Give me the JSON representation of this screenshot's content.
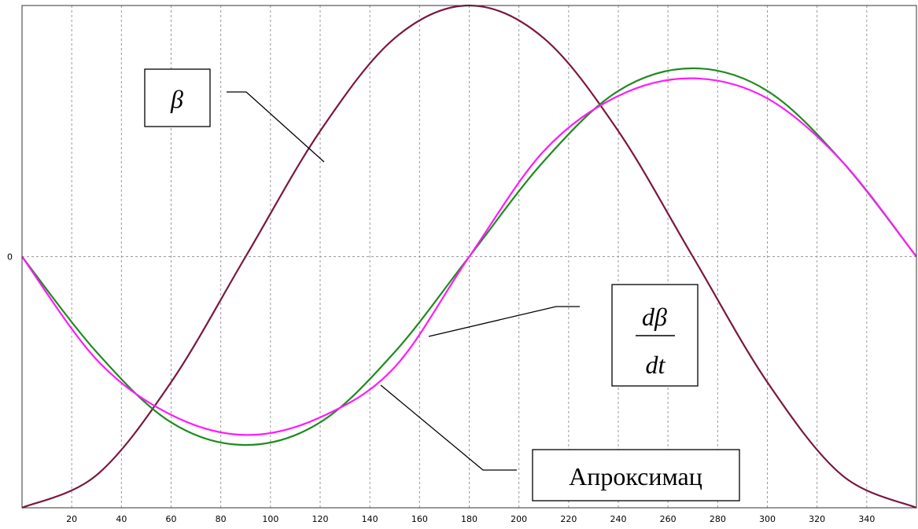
{
  "chart_data": {
    "type": "line",
    "xlim": [
      0,
      360
    ],
    "ylim": [
      -1,
      1
    ],
    "grid": true,
    "x_ticks": [
      20,
      40,
      60,
      80,
      100,
      120,
      140,
      160,
      180,
      200,
      220,
      240,
      260,
      280,
      300,
      320,
      340
    ],
    "y_tick_label": "0",
    "series": [
      {
        "color": "#7a1740",
        "x": [
          0,
          30,
          60,
          90,
          120,
          150,
          180,
          210,
          240,
          270,
          300,
          330,
          360
        ],
        "values": [
          -1.0,
          -0.87,
          -0.5,
          0.0,
          0.5,
          0.87,
          1.0,
          0.87,
          0.5,
          0.0,
          -0.5,
          -0.87,
          -1.0
        ]
      },
      {
        "color": "#1e8c1e",
        "x": [
          0,
          30,
          60,
          90,
          120,
          150,
          180,
          210,
          240,
          270,
          300,
          330,
          360
        ],
        "values": [
          0.0,
          -0.38,
          -0.66,
          -0.75,
          -0.66,
          -0.38,
          0.0,
          0.38,
          0.66,
          0.75,
          0.66,
          0.38,
          0.0
        ]
      },
      {
        "color": "#ff1aff",
        "x": [
          0,
          30,
          60,
          90,
          120,
          150,
          180,
          210,
          240,
          270,
          300,
          330,
          360
        ],
        "values": [
          0.0,
          -0.41,
          -0.63,
          -0.71,
          -0.64,
          -0.44,
          0.0,
          0.42,
          0.64,
          0.71,
          0.63,
          0.38,
          0.0
        ]
      }
    ],
    "annotations": {
      "beta": "β",
      "derivative_numerator": "dβ",
      "derivative_denominator": "dt",
      "approx": "Апроксимац"
    }
  }
}
